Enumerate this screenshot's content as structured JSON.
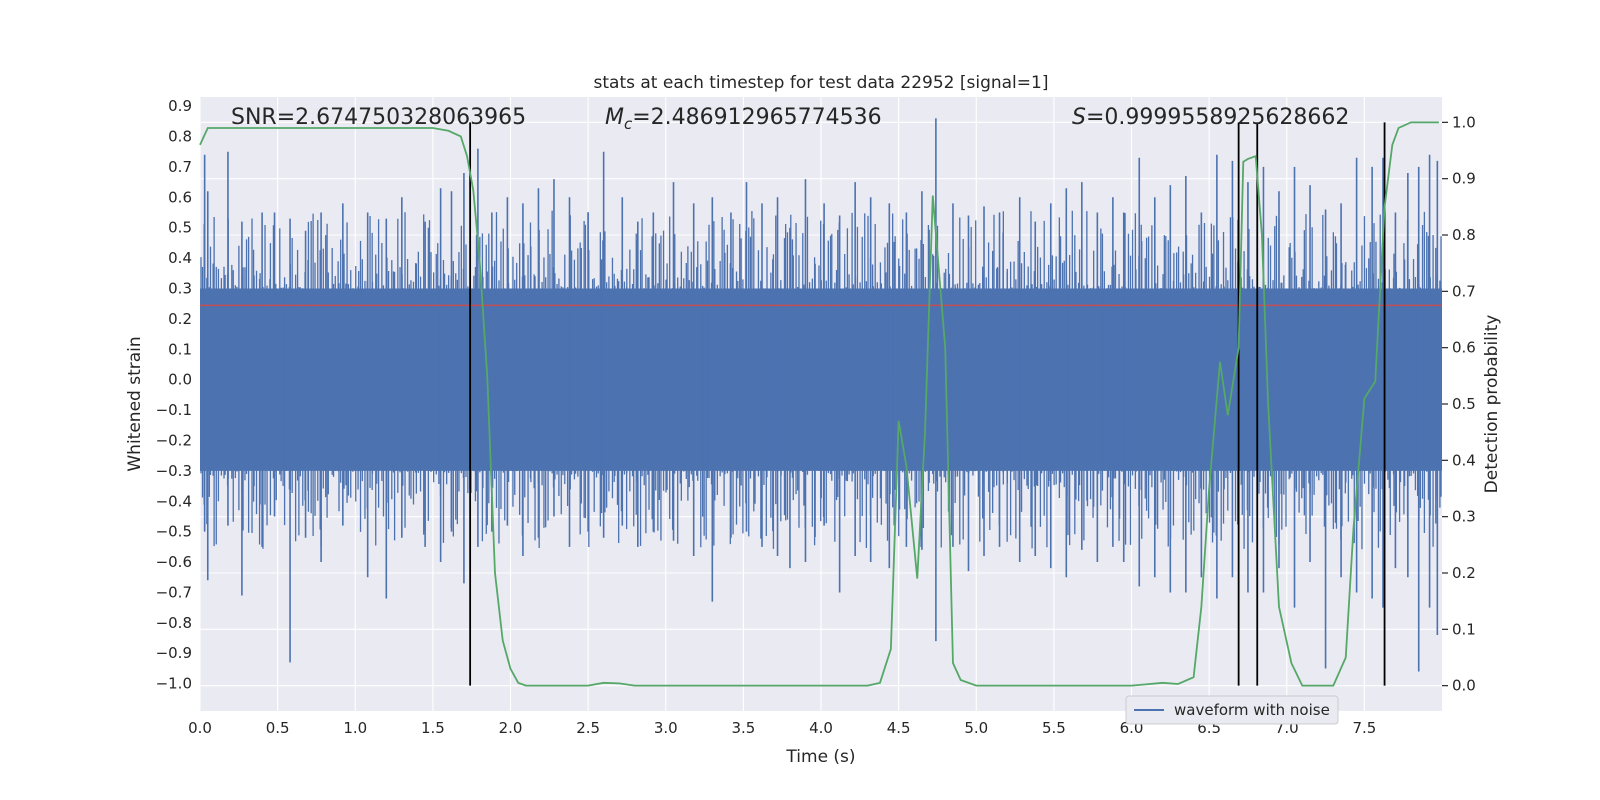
{
  "chart_data": {
    "type": "line",
    "title": "stats at each timestep for test data 22952 [signal=1]",
    "xlabel": "Time (s)",
    "ylabel": "Whitened strain",
    "y2label": "Detection probability",
    "xlim": [
      0.0,
      8.0
    ],
    "ylim": [
      -1.09,
      0.93
    ],
    "y2lim": [
      -0.045,
      1.045
    ],
    "x_ticks": [
      "0.0",
      "0.5",
      "1.0",
      "1.5",
      "2.0",
      "2.5",
      "3.0",
      "3.5",
      "4.0",
      "4.5",
      "5.0",
      "5.5",
      "6.0",
      "6.5",
      "7.0",
      "7.5"
    ],
    "x_tick_values": [
      0,
      0.5,
      1,
      1.5,
      2,
      2.5,
      3,
      3.5,
      4,
      4.5,
      5,
      5.5,
      6,
      6.5,
      7,
      7.5
    ],
    "y_ticks": [
      "0.9",
      "0.8",
      "0.7",
      "0.6",
      "0.5",
      "0.4",
      "0.3",
      "0.2",
      "0.1",
      "0.0",
      "−0.1",
      "−0.2",
      "−0.3",
      "−0.4",
      "−0.5",
      "−0.6",
      "−0.7",
      "−0.8",
      "−0.9",
      "−1.0"
    ],
    "y_tick_values": [
      0.9,
      0.8,
      0.7,
      0.6,
      0.5,
      0.4,
      0.3,
      0.2,
      0.1,
      0.0,
      -0.1,
      -0.2,
      -0.3,
      -0.4,
      -0.5,
      -0.6,
      -0.7,
      -0.8,
      -0.9,
      -1.0
    ],
    "y2_ticks": [
      "1.0",
      "0.9",
      "0.8",
      "0.7",
      "0.6",
      "0.5",
      "0.4",
      "0.3",
      "0.2",
      "0.1",
      "0.0"
    ],
    "y2_tick_values": [
      1.0,
      0.9,
      0.8,
      0.7,
      0.6,
      0.5,
      0.4,
      0.3,
      0.2,
      0.1,
      0.0
    ],
    "annotations": {
      "snr": "SNR=2.674750328063965",
      "mc_prefix": "M",
      "mc_sub": "c",
      "mc_value": "=2.486912965774536",
      "s_prefix": "S",
      "s_value": "=0.9999558925628662"
    },
    "legend": {
      "label": "waveform with noise",
      "placement": "lower-right"
    },
    "series": [
      {
        "name": "waveform with noise",
        "color": "#4c72b0",
        "axis": "left",
        "note": "dense noisy strain, core band approx -0.30..0.30",
        "peaks_x": [
          0.03,
          0.05,
          0.18,
          0.27,
          0.4,
          0.48,
          0.58,
          0.68,
          0.78,
          0.92,
          1.08,
          1.2,
          1.3,
          1.45,
          1.55,
          1.62,
          1.7,
          1.79,
          1.88,
          1.98,
          2.08,
          2.18,
          2.28,
          2.38,
          2.5,
          2.6,
          2.72,
          2.82,
          2.92,
          3.05,
          3.18,
          3.3,
          3.42,
          3.52,
          3.62,
          3.72,
          3.8,
          3.9,
          4.02,
          4.12,
          4.22,
          4.32,
          4.44,
          4.55,
          4.65,
          4.74,
          4.85,
          4.95,
          5.05,
          5.15,
          5.28,
          5.38,
          5.48,
          5.58,
          5.68,
          5.78,
          5.88,
          5.95,
          6.05,
          6.15,
          6.25,
          6.35,
          6.45,
          6.55,
          6.65,
          6.75,
          6.85,
          6.95,
          7.05,
          7.15,
          7.25,
          7.35,
          7.45,
          7.55,
          7.62,
          7.7,
          7.78,
          7.85,
          7.92,
          7.97
        ],
        "peaks_hi": [
          0.74,
          0.62,
          0.75,
          0.52,
          0.55,
          0.55,
          0.53,
          0.49,
          0.55,
          0.58,
          0.55,
          0.53,
          0.6,
          0.52,
          0.63,
          0.62,
          0.68,
          0.76,
          0.55,
          0.6,
          0.58,
          0.63,
          0.66,
          0.6,
          0.55,
          0.75,
          0.6,
          0.52,
          0.55,
          0.65,
          0.58,
          0.6,
          0.55,
          0.65,
          0.58,
          0.6,
          0.5,
          0.66,
          0.58,
          0.54,
          0.65,
          0.6,
          0.58,
          0.55,
          0.62,
          0.86,
          0.58,
          0.54,
          0.57,
          0.55,
          0.6,
          0.52,
          0.58,
          0.63,
          0.65,
          0.55,
          0.6,
          0.55,
          0.73,
          0.6,
          0.64,
          0.67,
          0.55,
          0.74,
          0.72,
          0.65,
          0.7,
          0.62,
          0.7,
          0.64,
          0.56,
          0.58,
          0.73,
          0.7,
          0.73,
          0.55,
          0.68,
          0.7,
          0.74,
          0.72
        ],
        "peaks_lo": [
          -0.5,
          -0.66,
          -0.48,
          -0.71,
          -0.55,
          -0.45,
          -0.93,
          -0.52,
          -0.6,
          -0.48,
          -0.65,
          -0.72,
          -0.52,
          -0.55,
          -0.6,
          -0.5,
          -0.67,
          -0.55,
          -0.5,
          -0.48,
          -0.58,
          -0.52,
          -0.45,
          -0.55,
          -0.5,
          -0.52,
          -0.48,
          -0.55,
          -0.5,
          -0.53,
          -0.58,
          -0.73,
          -0.52,
          -0.5,
          -0.55,
          -0.58,
          -0.62,
          -0.6,
          -0.48,
          -0.7,
          -0.58,
          -0.6,
          -0.62,
          -0.55,
          -0.56,
          -0.86,
          -0.55,
          -0.63,
          -0.58,
          -0.55,
          -0.6,
          -0.58,
          -0.62,
          -0.65,
          -0.56,
          -0.6,
          -0.55,
          -0.6,
          -0.68,
          -0.65,
          -0.7,
          -0.7,
          -0.65,
          -0.72,
          -0.65,
          -0.7,
          -0.7,
          -0.62,
          -0.75,
          -0.6,
          -0.95,
          -0.65,
          -0.7,
          -0.72,
          -0.75,
          -0.62,
          -0.65,
          -0.96,
          -0.75,
          -0.84
        ]
      },
      {
        "name": "detection probability",
        "color": "#55a868",
        "axis": "right",
        "x": [
          0.0,
          0.05,
          0.1,
          0.5,
          1.0,
          1.5,
          1.6,
          1.68,
          1.72,
          1.76,
          1.8,
          1.85,
          1.9,
          1.95,
          2.0,
          2.05,
          2.1,
          2.2,
          2.5,
          2.6,
          2.7,
          2.8,
          3.0,
          3.5,
          4.0,
          4.1,
          4.2,
          4.3,
          4.38,
          4.45,
          4.5,
          4.55,
          4.62,
          4.67,
          4.72,
          4.8,
          4.85,
          4.9,
          5.0,
          5.5,
          6.0,
          6.2,
          6.3,
          6.4,
          6.45,
          6.5,
          6.57,
          6.62,
          6.69,
          6.72,
          6.75,
          6.8,
          6.84,
          6.88,
          6.95,
          7.03,
          7.1,
          7.15,
          7.2,
          7.3,
          7.38,
          7.43,
          7.5,
          7.57,
          7.63,
          7.68,
          7.72,
          7.8,
          7.9,
          7.98
        ],
        "y": [
          0.96,
          0.99,
          0.99,
          0.99,
          0.99,
          0.99,
          0.985,
          0.975,
          0.94,
          0.88,
          0.76,
          0.55,
          0.2,
          0.08,
          0.03,
          0.005,
          0.0,
          0.0,
          0.0,
          0.005,
          0.004,
          0.0,
          0.0,
          0.0,
          0.0,
          0.0,
          0.0,
          0.0,
          0.005,
          0.065,
          0.47,
          0.39,
          0.19,
          0.45,
          0.87,
          0.6,
          0.04,
          0.01,
          0.0,
          0.0,
          0.0,
          0.005,
          0.003,
          0.015,
          0.14,
          0.35,
          0.575,
          0.48,
          0.6,
          0.93,
          0.935,
          0.94,
          0.8,
          0.5,
          0.14,
          0.04,
          0.0,
          0.0,
          0.0,
          0.0,
          0.05,
          0.28,
          0.51,
          0.54,
          0.85,
          0.96,
          0.99,
          1.0,
          1.0,
          1.0
        ]
      }
    ],
    "threshold": {
      "value": 0.675,
      "color": "#c44e52"
    },
    "markers_x": [
      1.74,
      6.69,
      6.81,
      7.63
    ],
    "colors": {
      "plot_bg": "#eaeaf2",
      "grid": "#ffffff",
      "strain": "#4c72b0",
      "probability": "#55a868",
      "threshold": "#c44e52",
      "marker": "#000000"
    }
  }
}
